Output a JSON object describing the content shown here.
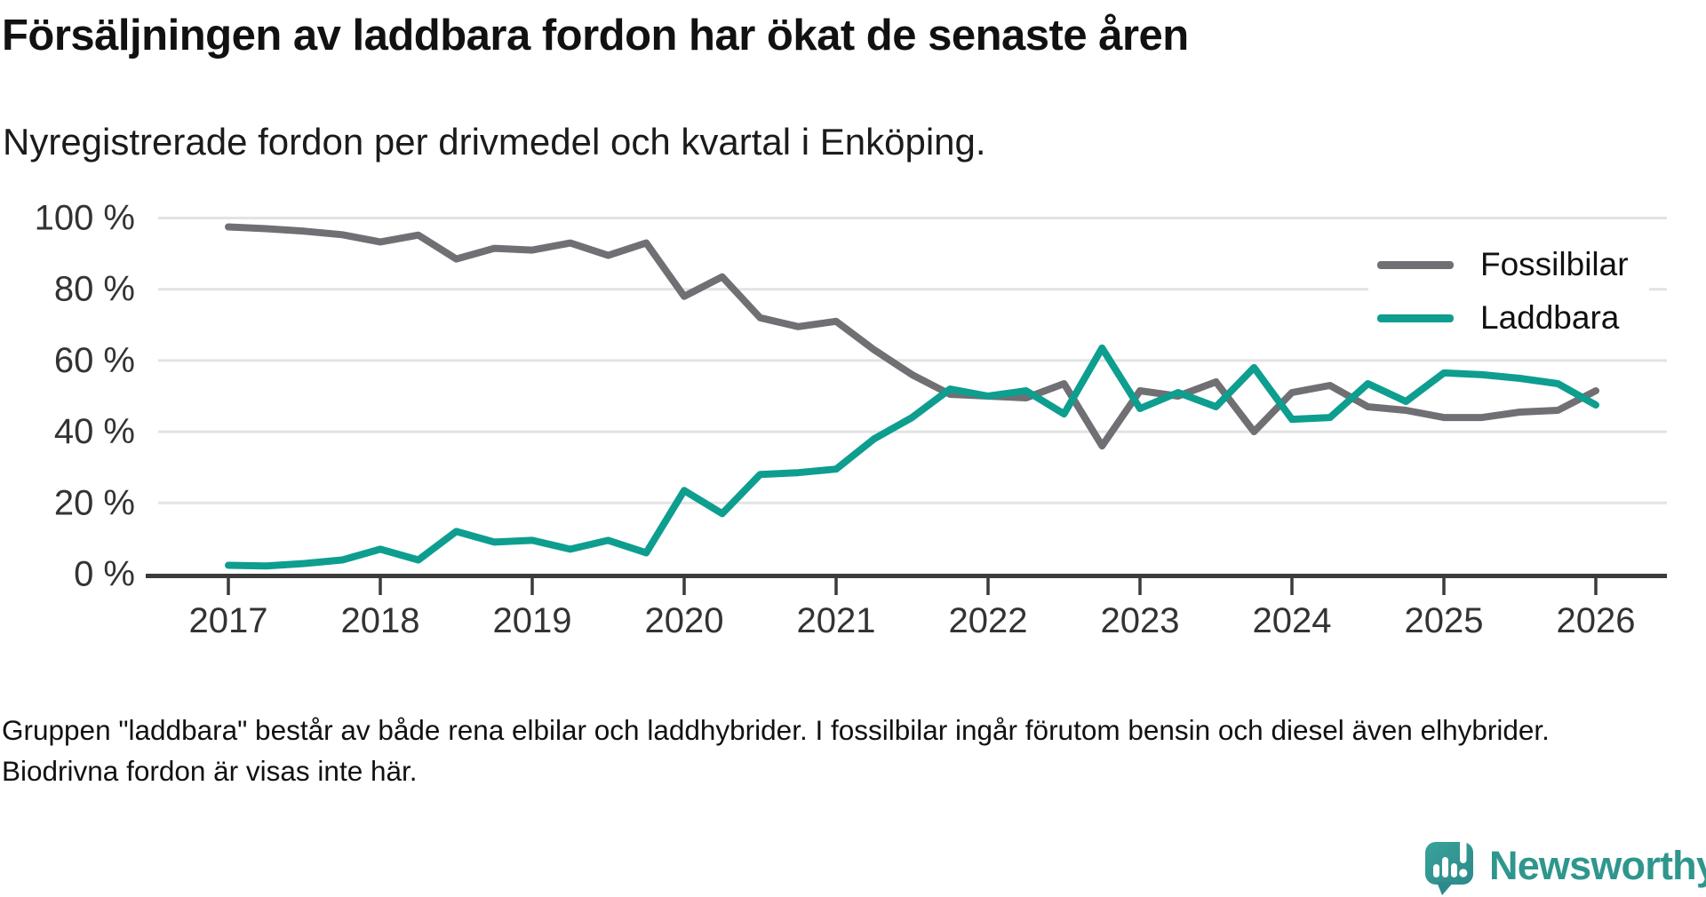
{
  "title": "Försäljningen av laddbara fordon har ökat de senaste åren",
  "subtitle": "Nyregistrerade fordon per drivmedel och kvartal i Enköping.",
  "footnote": "Gruppen \"laddbara\" består av både rena elbilar och laddhybrider. I fossilbilar ingår förutom bensin och diesel även elhybrider. Biodrivna fordon är visas inte här.",
  "brand": {
    "name": "Newsworthy",
    "color": "#2f968e"
  },
  "colors": {
    "fossil": "#706f74",
    "laddbara": "#0d9e8f",
    "grid": "#e3e3e3",
    "axis": "#3b3b3b",
    "tick_text": "#333333"
  },
  "chart_data": {
    "type": "line",
    "title": "Nyregistrerade fordon per drivmedel och kvartal i Enköping",
    "x_unit": "quarter",
    "x_start": "2017 Q1",
    "x_end": "2026 Q1",
    "points_per_year": 4,
    "ylim": [
      0,
      100
    ],
    "ylabel_format": "percent",
    "grid": true,
    "legend_position": "top-right",
    "x_ticks": [
      {
        "index": 0,
        "label": "2017"
      },
      {
        "index": 4,
        "label": "2018"
      },
      {
        "index": 8,
        "label": "2019"
      },
      {
        "index": 12,
        "label": "2020"
      },
      {
        "index": 16,
        "label": "2021"
      },
      {
        "index": 20,
        "label": "2022"
      },
      {
        "index": 24,
        "label": "2023"
      },
      {
        "index": 28,
        "label": "2024"
      },
      {
        "index": 32,
        "label": "2025"
      },
      {
        "index": 36,
        "label": "2026"
      }
    ],
    "y_ticks": [
      {
        "value": 0,
        "label": "0 %"
      },
      {
        "value": 20,
        "label": "20 %"
      },
      {
        "value": 40,
        "label": "40 %"
      },
      {
        "value": 60,
        "label": "60 %"
      },
      {
        "value": 80,
        "label": "80 %"
      },
      {
        "value": 100,
        "label": "100 %"
      }
    ],
    "series": [
      {
        "name": "Fossilbilar",
        "color": "#706f74",
        "values": [
          97.5,
          97,
          96.3,
          95.3,
          93.3,
          95.2,
          88.5,
          91.5,
          91,
          93,
          89.5,
          93,
          78,
          83.5,
          72,
          69.5,
          71,
          63,
          56,
          50.5,
          50,
          49.5,
          53.5,
          36,
          51.5,
          50,
          54,
          40,
          51,
          53,
          47,
          46,
          44,
          44,
          45.5,
          46,
          51.5
        ]
      },
      {
        "name": "Laddbara",
        "color": "#0d9e8f",
        "values": [
          2.5,
          2.3,
          3,
          4,
          7,
          4,
          12,
          9,
          9.5,
          7,
          9.5,
          6,
          23.5,
          17,
          28,
          28.5,
          29.5,
          38,
          44,
          52,
          50,
          51.5,
          45,
          63.5,
          46.5,
          51,
          47,
          58,
          43.5,
          44,
          53.5,
          48.5,
          56.5,
          56,
          55,
          53.5,
          47.5
        ]
      }
    ]
  }
}
